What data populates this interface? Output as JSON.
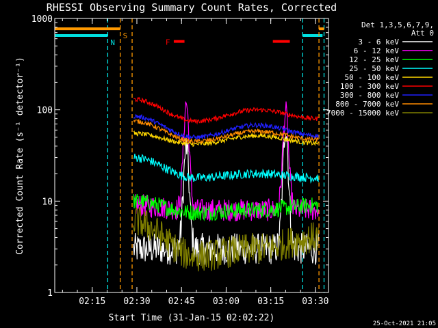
{
  "chart_data": {
    "type": "line",
    "title": "RHESSI Observing Summary Count Rates, Corrected",
    "xlabel": "Start Time (31-Jan-15 02:02:22)",
    "ylabel": "Corrected Count Rate (s⁻¹ detector⁻¹)",
    "y_scale": "log",
    "ylim": [
      1,
      1000
    ],
    "xlim_minutes": [
      0,
      92
    ],
    "x_ticks": [
      {
        "label": "02:15",
        "minute": 12.6
      },
      {
        "label": "02:30",
        "minute": 27.6
      },
      {
        "label": "02:45",
        "minute": 42.6
      },
      {
        "label": "03:00",
        "minute": 57.6
      },
      {
        "label": "03:15",
        "minute": 72.6
      },
      {
        "label": "03:30",
        "minute": 87.6
      }
    ],
    "y_ticks": [
      {
        "label": "1",
        "value": 1
      },
      {
        "label": "10",
        "value": 10
      },
      {
        "label": "100",
        "value": 100
      },
      {
        "label": "1000",
        "value": 1000
      }
    ],
    "legend_header": [
      "Det 1,3,5,6,7,9,",
      "Att 0"
    ],
    "legend_position": "right",
    "footer_timestamp": "25-Oct-2021 21:05",
    "series": [
      {
        "name": "3 - 6 keV",
        "color": "#ffffff",
        "base": [
          3,
          3,
          3,
          3
        ],
        "peaks": [
          40,
          65
        ]
      },
      {
        "name": "6 - 12 keV",
        "color": "#ff00ff",
        "base": [
          9,
          8,
          8,
          8
        ],
        "peaks": [
          120,
          95
        ]
      },
      {
        "name": "12 - 25 keV",
        "color": "#00ff00",
        "base": [
          10,
          7.5,
          8,
          9
        ]
      },
      {
        "name": "25 - 50 keV",
        "color": "#00ffff",
        "base": [
          30,
          18,
          20,
          18
        ]
      },
      {
        "name": "50 - 100 keV",
        "color": "#ffd700",
        "base": [
          55,
          42,
          52,
          43
        ]
      },
      {
        "name": "100 - 300 keV",
        "color": "#ff0000",
        "base": [
          130,
          75,
          100,
          80
        ]
      },
      {
        "name": "300 - 800 keV",
        "color": "#2020ff",
        "base": [
          85,
          50,
          68,
          52
        ]
      },
      {
        "name": "800 - 7000 keV",
        "color": "#ff8c00",
        "base": [
          75,
          45,
          58,
          47
        ]
      },
      {
        "name": "7000 - 15000 keV",
        "color": "#808000",
        "base": [
          6,
          2.5,
          3,
          4
        ]
      }
    ],
    "data_span_minutes": [
      26.5,
      88.6
    ],
    "peak_minutes": [
      44.2,
      77.6
    ],
    "flags": [
      {
        "label": "N",
        "color": "#00e0e0",
        "line_minutes": [
          17.8,
          83.3,
          90.5
        ],
        "bar_segments": [
          [
            0,
            17.8
          ],
          [
            83.3,
            90.0
          ]
        ],
        "bar_value": 650
      },
      {
        "label": "S",
        "color": "#ff9900",
        "line_minutes": [
          22.0,
          26.0,
          88.8
        ],
        "bar_segments": [
          [
            0,
            22.0
          ],
          [
            88.8,
            90.5
          ]
        ],
        "bar_value": 770
      },
      {
        "label": "F",
        "color": "#ff0000",
        "bar_segments": [
          [
            40.0,
            43.6
          ],
          [
            73.3,
            79.0
          ]
        ],
        "bar_value": 560
      }
    ]
  }
}
